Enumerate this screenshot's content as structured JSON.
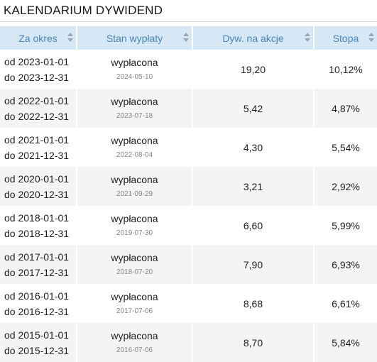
{
  "title": "KALENDARIUM DYWIDEND",
  "table": {
    "headers": [
      "Za okres",
      "Stan wypłaty",
      "Dyw. na akcje",
      "Stopa"
    ],
    "rows": [
      {
        "from": "od 2023-01-01",
        "to": "do 2023-12-31",
        "status": "wypłacona",
        "date": "2024-05-10",
        "div": "19,20",
        "yield": "10,12%"
      },
      {
        "from": "od 2022-01-01",
        "to": "do 2022-12-31",
        "status": "wypłacona",
        "date": "2023-07-18",
        "div": "5,42",
        "yield": "4,87%"
      },
      {
        "from": "od 2021-01-01",
        "to": "do 2021-12-31",
        "status": "wypłacona",
        "date": "2022-08-04",
        "div": "4,30",
        "yield": "5,54%"
      },
      {
        "from": "od 2020-01-01",
        "to": "do 2020-12-31",
        "status": "wypłacona",
        "date": "2021-09-29",
        "div": "3,21",
        "yield": "2,92%"
      },
      {
        "from": "od 2018-01-01",
        "to": "do 2018-12-31",
        "status": "wypłacona",
        "date": "2019-07-30",
        "div": "6,60",
        "yield": "5,99%"
      },
      {
        "from": "od 2017-01-01",
        "to": "do 2017-12-31",
        "status": "wypłacona",
        "date": "2018-07-20",
        "div": "7,90",
        "yield": "6,93%"
      },
      {
        "from": "od 2016-01-01",
        "to": "do 2016-12-31",
        "status": "wypłacona",
        "date": "2017-07-06",
        "div": "8,68",
        "yield": "6,61%"
      },
      {
        "from": "od 2015-01-01",
        "to": "do 2015-12-31",
        "status": "wypłacona",
        "date": "2016-07-06",
        "div": "8,70",
        "yield": "5,84%"
      }
    ]
  },
  "colors": {
    "header_bg": "#d6e7f5",
    "header_text": "#4a86b8",
    "row_alt": "#f4f4f4",
    "sort_icon": "#9aa6b0"
  }
}
